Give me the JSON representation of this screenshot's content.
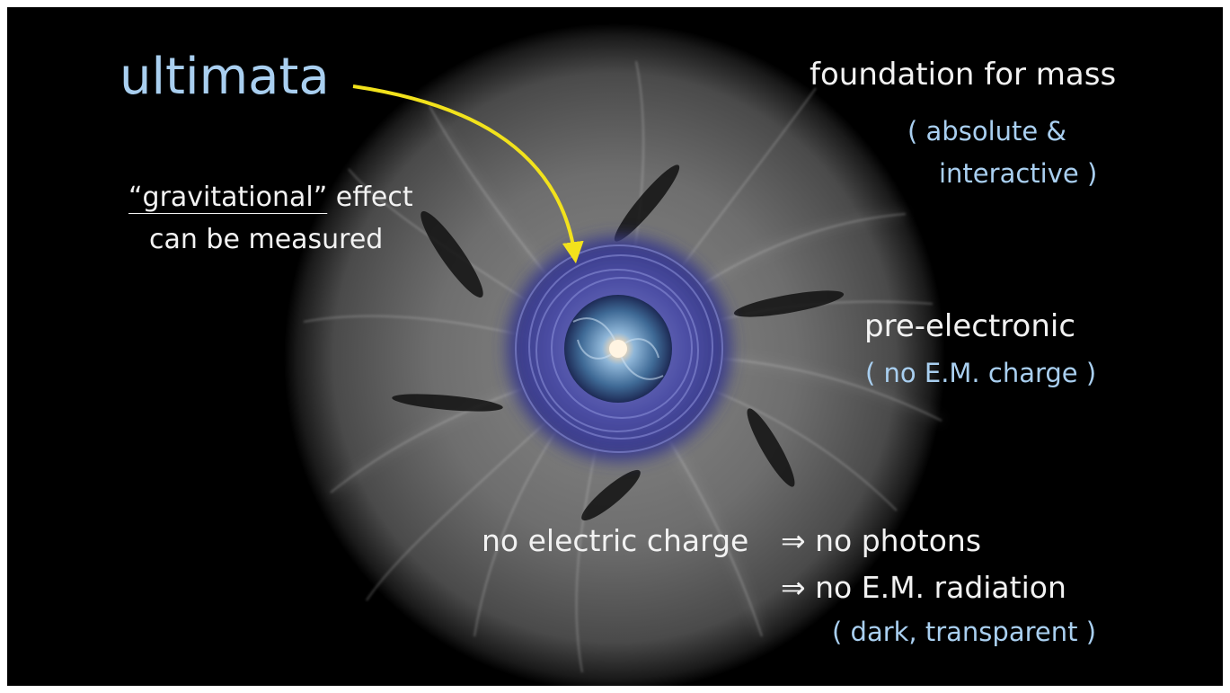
{
  "slide": {
    "title": "ultimata",
    "gravitational": {
      "quoted_word": "“gravitational”",
      "rest_of_line": " effect",
      "line2": "can be measured"
    },
    "mass": {
      "line1": "foundation for mass",
      "line2": "( absolute &",
      "line3": "interactive )"
    },
    "electronic": {
      "line1": "pre-electronic",
      "line2": "( no E.M. charge )"
    },
    "consequences": {
      "no_charge": "no electric charge",
      "implies_photons": "⇒  no photons",
      "implies_radiation": "⇒  no E.M. radiation",
      "note": "( dark, transparent )"
    }
  },
  "colors": {
    "background": "#000000",
    "frame": "#ffffff",
    "title_text": "#a9cff0",
    "body_text": "#f2f2f2",
    "note_text": "#a9cff0",
    "arrow": "#f2e21c",
    "vortex": "#4a4aa0",
    "galaxy_core": "#fff1d8"
  },
  "icons": {
    "arrow": "curved-arrow-icon",
    "image": "vortex-galaxy-image"
  }
}
